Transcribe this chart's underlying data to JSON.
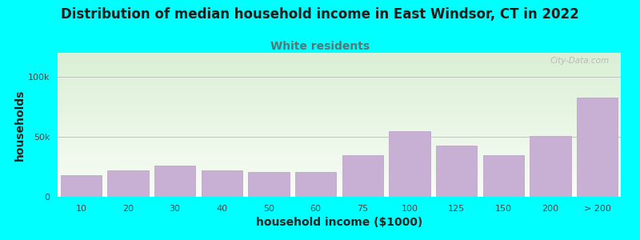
{
  "title": "Distribution of median household income in East Windsor, CT in 2022",
  "subtitle": "White residents",
  "xlabel": "household income ($1000)",
  "ylabel": "households",
  "background_color": "#00FFFF",
  "bar_color": "#c8afd4",
  "bar_edge_color": "#b89ec4",
  "title_fontsize": 12,
  "subtitle_fontsize": 10,
  "subtitle_color": "#557777",
  "xlabel_fontsize": 10,
  "ylabel_fontsize": 10,
  "categories": [
    "10",
    "20",
    "30",
    "40",
    "50",
    "60",
    "75",
    "100",
    "125",
    "150",
    "200",
    "> 200"
  ],
  "values": [
    18000,
    22000,
    26000,
    22000,
    21000,
    21000,
    35000,
    55000,
    43000,
    35000,
    51000,
    83000
  ],
  "ylim": [
    0,
    120000
  ],
  "yticks": [
    0,
    50000,
    100000
  ],
  "ytick_labels": [
    "0",
    "50k",
    "100k"
  ],
  "grid_color": "#bbbbbb",
  "watermark": "City-Data.com",
  "grad_top": "#daefd5",
  "grad_bottom": "#f8fdf6"
}
